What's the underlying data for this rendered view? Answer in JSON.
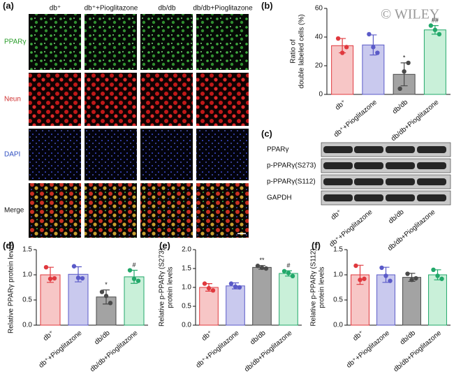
{
  "panels": {
    "a": {
      "label": "(a)",
      "columns": [
        "db⁺",
        "db⁺+Pioglitazone",
        "db/db",
        "db/db+Pioglitazone"
      ],
      "rows": [
        "PPARγ",
        "Neun",
        "DAPI",
        "Merge"
      ]
    },
    "c": {
      "label": "(c)",
      "rows": [
        "PPARγ",
        "p-PPARγ(S273)",
        "p-PPARγ(S112)",
        "GAPDH"
      ],
      "categories": [
        "db⁺",
        "db⁺+Pioglitazone",
        "db/db",
        "db/db+Pioglitazone"
      ]
    }
  },
  "watermark": "© WILEY",
  "chart_data": [
    {
      "type": "bar",
      "panel_label": "(b)",
      "ylabel": [
        "Ratio of",
        "double labeled cells (%)"
      ],
      "categories": [
        "db⁺",
        "db⁺+Pioglitazone",
        "db/db",
        "db/db+Pioglitazone"
      ],
      "values": [
        34,
        34.5,
        14,
        45
      ],
      "errors": [
        5,
        7,
        8,
        3
      ],
      "points": [
        [
          39,
          33,
          29
        ],
        [
          42,
          29,
          33
        ],
        [
          4,
          22,
          16
        ],
        [
          48,
          42,
          45
        ]
      ],
      "annotations": [
        null,
        null,
        "*",
        "##"
      ],
      "colors": [
        "#f7c6c6",
        "#c9c9ee",
        "#a3a3a3",
        "#c9f0d9"
      ],
      "edge_colors": [
        "#e0393e",
        "#5a5ac8",
        "#4a4a4a",
        "#22a86a"
      ],
      "ylim": [
        0,
        60
      ],
      "yticks": [
        0,
        20,
        40,
        60
      ]
    },
    {
      "type": "bar",
      "panel_label": "(d)",
      "ylabel": [
        "Relative PPARγ protein levels"
      ],
      "categories": [
        "db⁺",
        "db⁺+Pioglitazone",
        "db/db",
        "db/db+Pioglitazone"
      ],
      "values": [
        1.0,
        1.01,
        0.56,
        0.96
      ],
      "errors": [
        0.15,
        0.15,
        0.14,
        0.13
      ],
      "points": [
        [
          1.15,
          0.93,
          0.92
        ],
        [
          1.17,
          0.93,
          0.94
        ],
        [
          0.66,
          0.44,
          0.58
        ],
        [
          1.09,
          0.88,
          0.92
        ]
      ],
      "annotations": [
        null,
        null,
        "*",
        "#"
      ],
      "colors": [
        "#f7c6c6",
        "#c9c9ee",
        "#a3a3a3",
        "#c9f0d9"
      ],
      "edge_colors": [
        "#e0393e",
        "#5a5ac8",
        "#4a4a4a",
        "#22a86a"
      ],
      "ylim": [
        0,
        1.5
      ],
      "yticks": [
        {
          "value": 0,
          "label": "0.0"
        },
        0.5,
        {
          "value": 1,
          "label": "1.0"
        },
        1.5
      ]
    },
    {
      "type": "bar",
      "panel_label": "(e)",
      "ylabel": [
        "Relative p-PPARγ (S273)",
        "protein levels"
      ],
      "categories": [
        "db⁺",
        "db⁺+Pioglitazone",
        "db/db",
        "db/db+Pioglitazone"
      ],
      "values": [
        1.0,
        1.04,
        1.53,
        1.37
      ],
      "errors": [
        0.1,
        0.08,
        0.05,
        0.07
      ],
      "points": [
        [
          1.1,
          0.92,
          0.98
        ],
        [
          1.1,
          1.0,
          1.02
        ],
        [
          1.57,
          1.5,
          1.52
        ],
        [
          1.43,
          1.3,
          1.38
        ]
      ],
      "annotations": [
        null,
        null,
        "**",
        "#"
      ],
      "colors": [
        "#f7c6c6",
        "#c9c9ee",
        "#a3a3a3",
        "#c9f0d9"
      ],
      "edge_colors": [
        "#e0393e",
        "#5a5ac8",
        "#4a4a4a",
        "#22a86a"
      ],
      "ylim": [
        0,
        2
      ],
      "yticks": [
        {
          "value": 0,
          "label": "0.0"
        },
        0.5,
        {
          "value": 1,
          "label": "1.0"
        },
        1.5,
        {
          "value": 2,
          "label": "2.0"
        }
      ]
    },
    {
      "type": "bar",
      "panel_label": "(f)",
      "ylabel": [
        "Relative p-PPARγ (S112)",
        "protein levels"
      ],
      "categories": [
        "db⁺",
        "db⁺+Pioglitazone",
        "db/db",
        "db/db+Pioglitazone"
      ],
      "values": [
        1.0,
        1.0,
        0.95,
        1.0
      ],
      "errors": [
        0.19,
        0.15,
        0.08,
        0.1
      ],
      "points": [
        [
          1.18,
          0.92,
          0.9
        ],
        [
          1.14,
          0.88,
          0.98
        ],
        [
          1.02,
          0.93,
          0.9
        ],
        [
          1.1,
          0.92,
          0.98
        ]
      ],
      "annotations": [
        null,
        null,
        null,
        null
      ],
      "colors": [
        "#f7c6c6",
        "#c9c9ee",
        "#a3a3a3",
        "#c9f0d9"
      ],
      "edge_colors": [
        "#e0393e",
        "#5a5ac8",
        "#4a4a4a",
        "#22a86a"
      ],
      "ylim": [
        0,
        1.5
      ],
      "yticks": [
        {
          "value": 0,
          "label": "0.0"
        },
        0.5,
        {
          "value": 1,
          "label": "1.0"
        },
        1.5
      ]
    }
  ]
}
